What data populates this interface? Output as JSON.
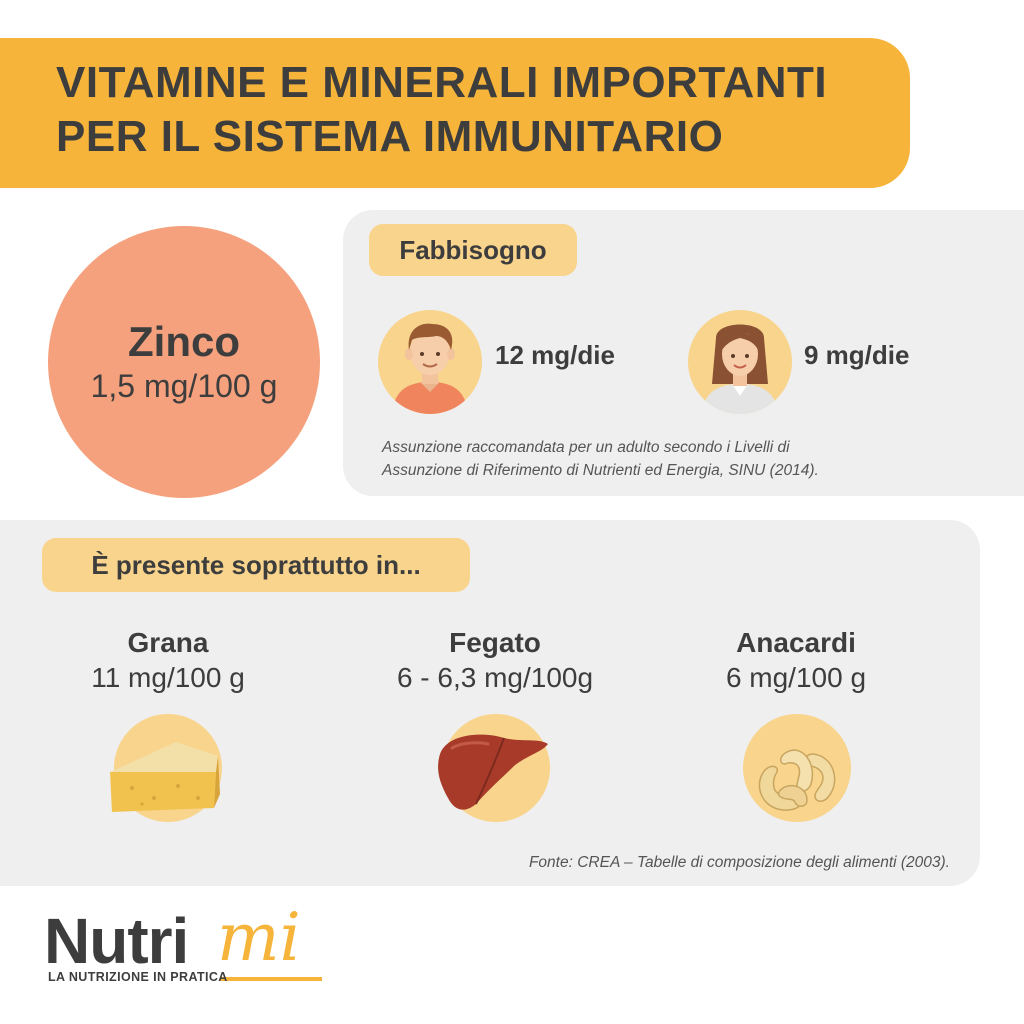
{
  "header": {
    "title_line1": "VITAMINE E MINERALI IMPORTANTI",
    "title_line2": "PER IL SISTEMA IMMUNITARIO"
  },
  "mineral": {
    "name": "Zinco",
    "value": "1,5 mg/100 g"
  },
  "requirement": {
    "tag": "Fabbisogno",
    "man": "12 mg/die",
    "woman": "9 mg/die",
    "note_line1": "Assunzione raccomandata per un adulto secondo i Livelli di",
    "note_line2": "Assunzione di Riferimento di Nutrienti ed Energia, SINU (2014)."
  },
  "sources": {
    "tag": "È presente soprattutto in...",
    "foods": [
      {
        "name": "Grana",
        "value": "11 mg/100 g",
        "icon": "cheese-icon"
      },
      {
        "name": "Fegato",
        "value": "6 - 6,3 mg/100g",
        "icon": "liver-icon"
      },
      {
        "name": "Anacardi",
        "value": "6 mg/100 g",
        "icon": "cashew-icon"
      }
    ],
    "note": "Fonte: CREA – Tabelle di composizione degli alimenti (2003)."
  },
  "logo": {
    "main": "Nutri",
    "accent": "mi",
    "tagline": "LA NUTRIZIONE IN PRATICA"
  },
  "colors": {
    "banner": "#f6b53a",
    "circle": "#f5a17d",
    "tag": "#f8d48d",
    "panel": "#efefef"
  }
}
